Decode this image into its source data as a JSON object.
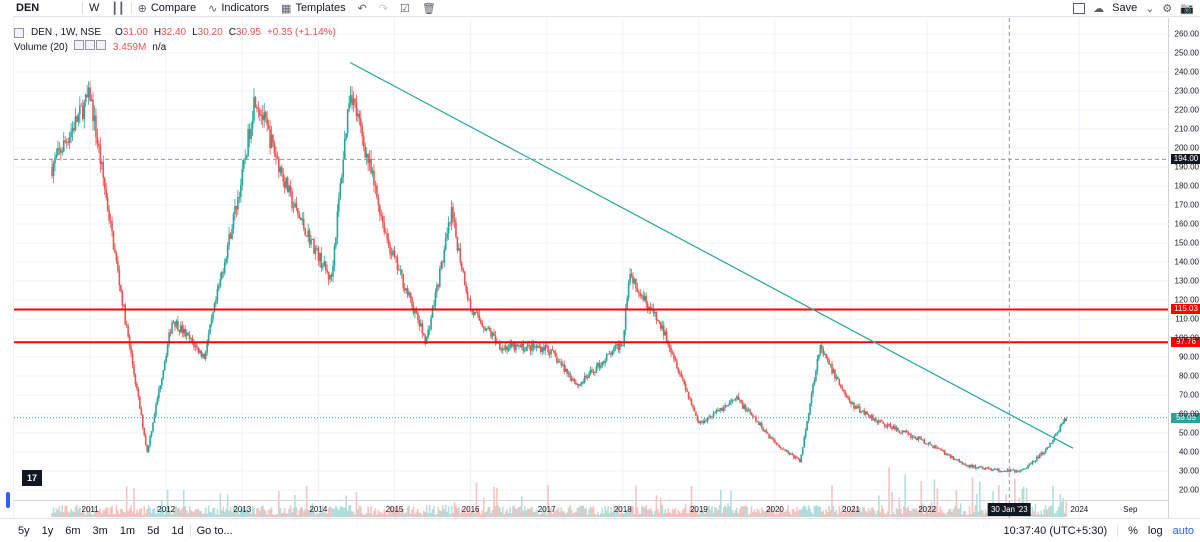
{
  "toolbar": {
    "symbol": "DEN",
    "interval": "W",
    "compare": "Compare",
    "indicators": "Indicators",
    "templates": "Templates",
    "save": "Save"
  },
  "legend": {
    "title": "DEN , 1W, NSE",
    "o_label": "O",
    "o": "31.00",
    "h_label": "H",
    "h": "32.40",
    "l_label": "L",
    "l": "30.20",
    "c_label": "C",
    "c": "30.95",
    "change": "+0.35 (+1.14%)",
    "volume_label": "Volume (20)",
    "volume_value": "3.459M",
    "volume_ma": "n/a"
  },
  "price_axis": {
    "ticks": [
      "260.00",
      "250.00",
      "240.00",
      "230.00",
      "220.00",
      "210.00",
      "200.00",
      "190.00",
      "180.00",
      "170.00",
      "160.00",
      "150.00",
      "140.00",
      "130.00",
      "120.00",
      "110.00",
      "100.00",
      "90.00",
      "80.00",
      "70.00",
      "60.00",
      "50.00",
      "40.00",
      "30.00",
      "20.00"
    ],
    "labels": {
      "crosshair": "194.00",
      "resistance_upper": "115.03",
      "resistance_lower": "97.76",
      "last": "58.05"
    }
  },
  "time_axis": {
    "ticks": [
      "2011",
      "2012",
      "2013",
      "2014",
      "2015",
      "2016",
      "2017",
      "2018",
      "2019",
      "2020",
      "2021",
      "2022",
      "2024",
      "Sep"
    ],
    "crosshair_date": "30 Jan '23"
  },
  "bottom": {
    "ranges": [
      "5y",
      "1y",
      "6m",
      "3m",
      "1m",
      "5d",
      "1d"
    ],
    "goto": "Go to...",
    "clock": "10:37:40 (UTC+5:30)",
    "percent": "%",
    "log": "log",
    "auto": "auto"
  },
  "logo_text": "17",
  "colors": {
    "up": "#26a69a",
    "down": "#ef5350",
    "level_line": "#ff0000",
    "trendline": "#26a69a",
    "last_price": "#26a69a",
    "crosshair_label": "#131722"
  },
  "chart_data": {
    "type": "line",
    "title": "",
    "xlabel": "",
    "ylabel": "",
    "ylim": [
      20,
      260
    ],
    "x": [
      "2010-07",
      "2011-01",
      "2011-07",
      "2011-10",
      "2012-02",
      "2012-07",
      "2013-01",
      "2013-03",
      "2013-09",
      "2014-03",
      "2014-06",
      "2014-12",
      "2015-06",
      "2015-10",
      "2016-01",
      "2016-06",
      "2017-01",
      "2017-06",
      "2018-01",
      "2018-02",
      "2018-08",
      "2019-01",
      "2019-07",
      "2020-01",
      "2020-05",
      "2020-08",
      "2021-01",
      "2021-06",
      "2022-01",
      "2022-07",
      "2023-01",
      "2023-04",
      "2023-08",
      "2023-11"
    ],
    "series": [
      {
        "values": [
          190,
          228,
          100,
          40,
          110,
          90,
          185,
          228,
          170,
          130,
          232,
          150,
          98,
          165,
          115,
          95,
          95,
          75,
          98,
          135,
          100,
          55,
          68,
          45,
          35,
          95,
          65,
          55,
          45,
          33,
          30,
          30,
          42,
          58
        ]
      }
    ],
    "horizontal_levels": [
      115.03,
      97.76
    ],
    "crosshair_price": 194.0,
    "last_price": 58.05,
    "trendline": {
      "start": [
        "2014-06",
        245
      ],
      "end": [
        "2023-12",
        42
      ]
    }
  }
}
